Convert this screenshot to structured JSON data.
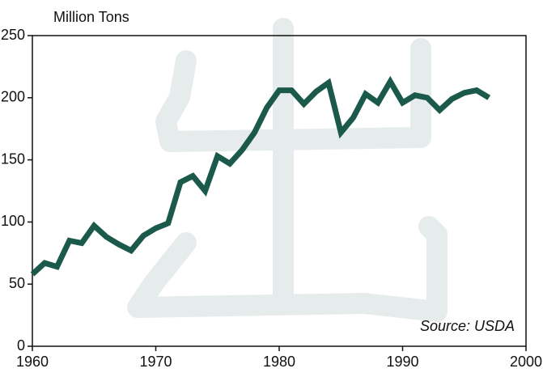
{
  "chart_data": {
    "type": "line",
    "y_label": "Million Tons",
    "annotation": "Source: USDA",
    "x": [
      1960,
      1961,
      1962,
      1963,
      1964,
      1965,
      1966,
      1967,
      1968,
      1969,
      1970,
      1971,
      1972,
      1973,
      1974,
      1975,
      1976,
      1977,
      1978,
      1979,
      1980,
      1981,
      1982,
      1983,
      1984,
      1985,
      1986,
      1987,
      1988,
      1989,
      1990,
      1991,
      1992,
      1993,
      1994,
      1995,
      1996,
      1997
    ],
    "series": [
      {
        "color": "#1b5a4b",
        "values": [
          58,
          67,
          64,
          85,
          83,
          97,
          88,
          82,
          77,
          89,
          95,
          99,
          132,
          137,
          125,
          153,
          147,
          158,
          172,
          192,
          206,
          206,
          195,
          205,
          212,
          172,
          184,
          203,
          196,
          213,
          196,
          202,
          200,
          190,
          199,
          204,
          206,
          200
        ]
      }
    ],
    "xlim": [
      1960,
      2000
    ],
    "xticks": [
      1960,
      1970,
      1980,
      1990,
      2000
    ],
    "ylim": [
      0,
      250
    ],
    "yticks": [
      0,
      50,
      100,
      150,
      200,
      250
    ]
  }
}
